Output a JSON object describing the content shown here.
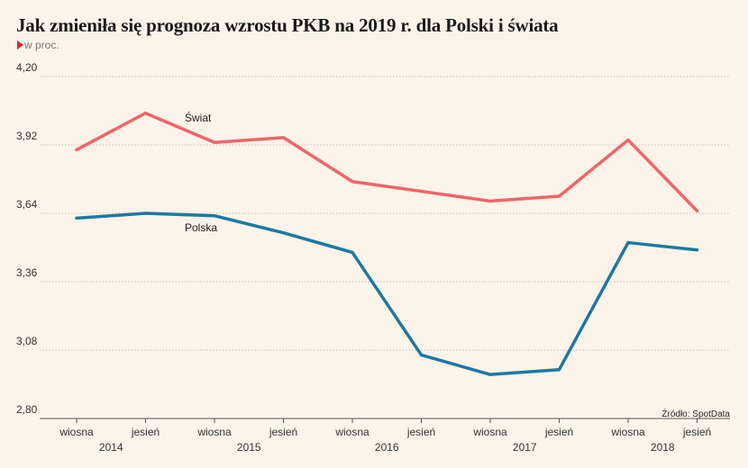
{
  "chart_data": {
    "type": "line",
    "title": "Jak zmieniła się prognoza wzrostu PKB na 2019 r. dla Polski i świata",
    "unit": "w proc.",
    "source": "Źródło: SpotData",
    "categories": [
      "wiosna",
      "jesień",
      "wiosna",
      "jesień",
      "wiosna",
      "jesień",
      "wiosna",
      "jesień",
      "wiosna",
      "jesień"
    ],
    "years": [
      "2014",
      "2015",
      "2016",
      "2017",
      "2018"
    ],
    "yticks": [
      "4,20",
      "3,92",
      "3,64",
      "3,36",
      "3,08",
      "2,80"
    ],
    "ylim": [
      2.8,
      4.2
    ],
    "grid": true,
    "series": [
      {
        "name": "Świat",
        "color": "#f0646a",
        "values": [
          3.9,
          4.05,
          3.93,
          3.95,
          3.77,
          3.73,
          3.69,
          3.71,
          3.94,
          3.65
        ]
      },
      {
        "name": "Polska",
        "color": "#1a7aa3",
        "values": [
          3.62,
          3.64,
          3.63,
          3.56,
          3.48,
          3.06,
          2.98,
          3.0,
          3.52,
          3.49
        ]
      }
    ]
  }
}
